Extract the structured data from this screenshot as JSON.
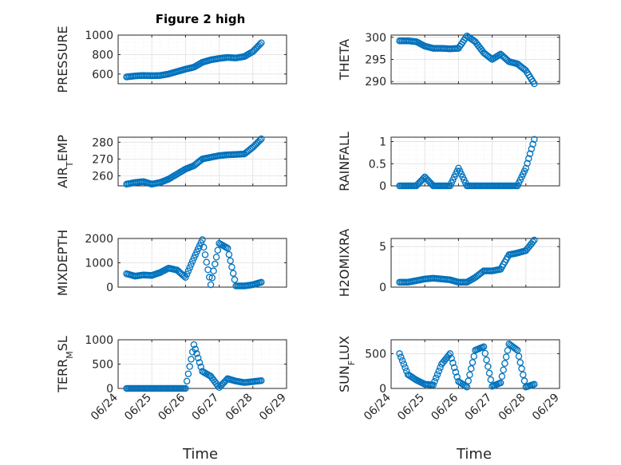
{
  "figure": {
    "title": "Figure 2 high",
    "xlabel": "Time"
  },
  "colors": {
    "marker": "#0072BD",
    "axis": "#262626",
    "grid": "#dfdfdf",
    "background": "#ffffff"
  },
  "chart_data": [
    {
      "type": "scatter",
      "ylabel": "PRESSURE",
      "ylim": [
        500,
        1000
      ],
      "yticks": [
        "600",
        "800",
        "1000"
      ],
      "xlim": [
        "06/24",
        "06/29"
      ],
      "grid": true,
      "series": [
        {
          "marker": "circle-open",
          "x": [
            "06/24 06:00",
            "06/24 12:00",
            "06/24 18:00",
            "06/25 00:00",
            "06/25 06:00",
            "06/25 12:00",
            "06/25 18:00",
            "06/26 00:00",
            "06/26 06:00",
            "06/26 12:00",
            "06/26 18:00",
            "06/27 00:00",
            "06/27 06:00",
            "06/27 12:00",
            "06/27 18:00",
            "06/28 00:00",
            "06/28 06:00"
          ],
          "y": [
            570,
            580,
            585,
            582,
            585,
            600,
            625,
            650,
            670,
            720,
            745,
            760,
            770,
            765,
            780,
            830,
            920
          ]
        }
      ]
    },
    {
      "type": "scatter",
      "ylabel": "THETA",
      "ylim": [
        289.5,
        300.5
      ],
      "yticks": [
        "290",
        "295",
        "300"
      ],
      "xlim": [
        "06/24",
        "06/29"
      ],
      "grid": true,
      "series": [
        {
          "marker": "circle-open",
          "x": [
            "06/24 06:00",
            "06/24 12:00",
            "06/24 18:00",
            "06/25 00:00",
            "06/25 06:00",
            "06/25 12:00",
            "06/25 18:00",
            "06/26 00:00",
            "06/26 06:00",
            "06/26 12:00",
            "06/26 18:00",
            "06/27 00:00",
            "06/27 06:00",
            "06/27 12:00",
            "06/27 18:00",
            "06/28 00:00",
            "06/28 06:00"
          ],
          "y": [
            299.2,
            299.2,
            299,
            298,
            297.5,
            297.5,
            297.4,
            297.5,
            300.3,
            299,
            296.5,
            295,
            296.2,
            294.5,
            294,
            292.5,
            289.5
          ]
        }
      ]
    },
    {
      "type": "scatter",
      "ylabel": "AIR_TEMP",
      "ylim": [
        254,
        283
      ],
      "yticks": [
        "260",
        "270",
        "280"
      ],
      "xlim": [
        "06/24",
        "06/29"
      ],
      "grid": true,
      "series": [
        {
          "marker": "circle-open",
          "x": [
            "06/24 06:00",
            "06/24 12:00",
            "06/24 18:00",
            "06/25 00:00",
            "06/25 06:00",
            "06/25 12:00",
            "06/25 18:00",
            "06/26 00:00",
            "06/26 06:00",
            "06/26 12:00",
            "06/26 18:00",
            "06/27 00:00",
            "06/27 06:00",
            "06/27 12:00",
            "06/27 18:00",
            "06/28 00:00",
            "06/28 06:00"
          ],
          "y": [
            255,
            256,
            256.5,
            255,
            256,
            258,
            261,
            264,
            266,
            270,
            271,
            272,
            272.5,
            272.7,
            273,
            277,
            282
          ]
        }
      ]
    },
    {
      "type": "scatter",
      "ylabel": "RAINFALL",
      "ylim": [
        0,
        1.1
      ],
      "yticks": [
        "0",
        "0.5",
        "1"
      ],
      "xlim": [
        "06/24",
        "06/29"
      ],
      "grid": true,
      "series": [
        {
          "marker": "circle-open",
          "x": [
            "06/24 06:00",
            "06/24 12:00",
            "06/24 18:00",
            "06/25 00:00",
            "06/25 06:00",
            "06/25 12:00",
            "06/25 18:00",
            "06/26 00:00",
            "06/26 06:00",
            "06/26 12:00",
            "06/26 18:00",
            "06/27 00:00",
            "06/27 06:00",
            "06/27 12:00",
            "06/27 18:00",
            "06/28 00:00",
            "06/28 06:00"
          ],
          "y": [
            0,
            0,
            0,
            0.2,
            0,
            0,
            0,
            0.4,
            0,
            0,
            0,
            0,
            0,
            0,
            0,
            0.4,
            1.05
          ]
        }
      ]
    },
    {
      "type": "scatter",
      "ylabel": "MIXDEPTH",
      "ylim": [
        0,
        2000
      ],
      "yticks": [
        "0",
        "1000",
        "2000"
      ],
      "xlim": [
        "06/24",
        "06/29"
      ],
      "grid": true,
      "series": [
        {
          "marker": "circle-open",
          "x": [
            "06/24 06:00",
            "06/24 12:00",
            "06/24 18:00",
            "06/25 00:00",
            "06/25 06:00",
            "06/25 12:00",
            "06/25 18:00",
            "06/26 00:00",
            "06/26 06:00",
            "06/26 12:00",
            "06/26 18:00",
            "06/27 00:00",
            "06/27 06:00",
            "06/27 12:00",
            "06/27 18:00",
            "06/28 00:00",
            "06/28 06:00"
          ],
          "y": [
            550,
            450,
            500,
            480,
            600,
            780,
            700,
            400,
            1200,
            1950,
            100,
            1800,
            1600,
            50,
            50,
            100,
            200
          ]
        }
      ]
    },
    {
      "type": "scatter",
      "ylabel": "H2OMIXRA",
      "ylim": [
        0,
        6
      ],
      "yticks": [
        "0",
        "5"
      ],
      "xlim": [
        "06/24",
        "06/29"
      ],
      "grid": true,
      "series": [
        {
          "marker": "circle-open",
          "x": [
            "06/24 06:00",
            "06/24 12:00",
            "06/24 18:00",
            "06/25 00:00",
            "06/25 06:00",
            "06/25 12:00",
            "06/25 18:00",
            "06/26 00:00",
            "06/26 06:00",
            "06/26 12:00",
            "06/26 18:00",
            "06/27 00:00",
            "06/27 06:00",
            "06/27 12:00",
            "06/27 18:00",
            "06/28 00:00",
            "06/28 06:00"
          ],
          "y": [
            0.6,
            0.6,
            0.8,
            1,
            1.1,
            1,
            0.9,
            0.6,
            0.6,
            1.2,
            2,
            2,
            2.2,
            4,
            4.2,
            4.5,
            5.8
          ]
        }
      ]
    },
    {
      "type": "scatter",
      "ylabel": "TERR_MSL",
      "ylim": [
        0,
        1000
      ],
      "yticks": [
        "0",
        "500",
        "1000"
      ],
      "xlim": [
        "06/24",
        "06/29"
      ],
      "grid": true,
      "series": [
        {
          "marker": "circle-open",
          "x": [
            "06/24 06:00",
            "06/24 12:00",
            "06/24 18:00",
            "06/25 00:00",
            "06/25 06:00",
            "06/25 12:00",
            "06/25 18:00",
            "06/26 00:00",
            "06/26 06:00",
            "06/26 12:00",
            "06/26 18:00",
            "06/27 00:00",
            "06/27 06:00",
            "06/27 12:00",
            "06/27 18:00",
            "06/28 00:00",
            "06/28 06:00"
          ],
          "y": [
            0,
            0,
            0,
            0,
            0,
            0,
            0,
            0,
            900,
            350,
            250,
            20,
            200,
            150,
            120,
            140,
            160
          ]
        }
      ]
    },
    {
      "type": "scatter",
      "ylabel": "SUN_FLUX",
      "ylim": [
        0,
        700
      ],
      "yticks": [
        "0",
        "500"
      ],
      "xlim": [
        "06/24",
        "06/29"
      ],
      "grid": true,
      "series": [
        {
          "marker": "circle-open",
          "x": [
            "06/24 06:00",
            "06/24 12:00",
            "06/24 18:00",
            "06/25 00:00",
            "06/25 06:00",
            "06/25 12:00",
            "06/25 18:00",
            "06/26 00:00",
            "06/26 06:00",
            "06/26 12:00",
            "06/26 18:00",
            "06/27 00:00",
            "06/27 06:00",
            "06/27 12:00",
            "06/27 18:00",
            "06/28 00:00",
            "06/28 06:00"
          ],
          "y": [
            500,
            200,
            120,
            60,
            50,
            350,
            500,
            100,
            20,
            550,
            600,
            30,
            80,
            640,
            550,
            20,
            60
          ]
        }
      ]
    }
  ],
  "xticks": [
    "06/24",
    "06/25",
    "06/26",
    "06/27",
    "06/28",
    "06/29"
  ]
}
